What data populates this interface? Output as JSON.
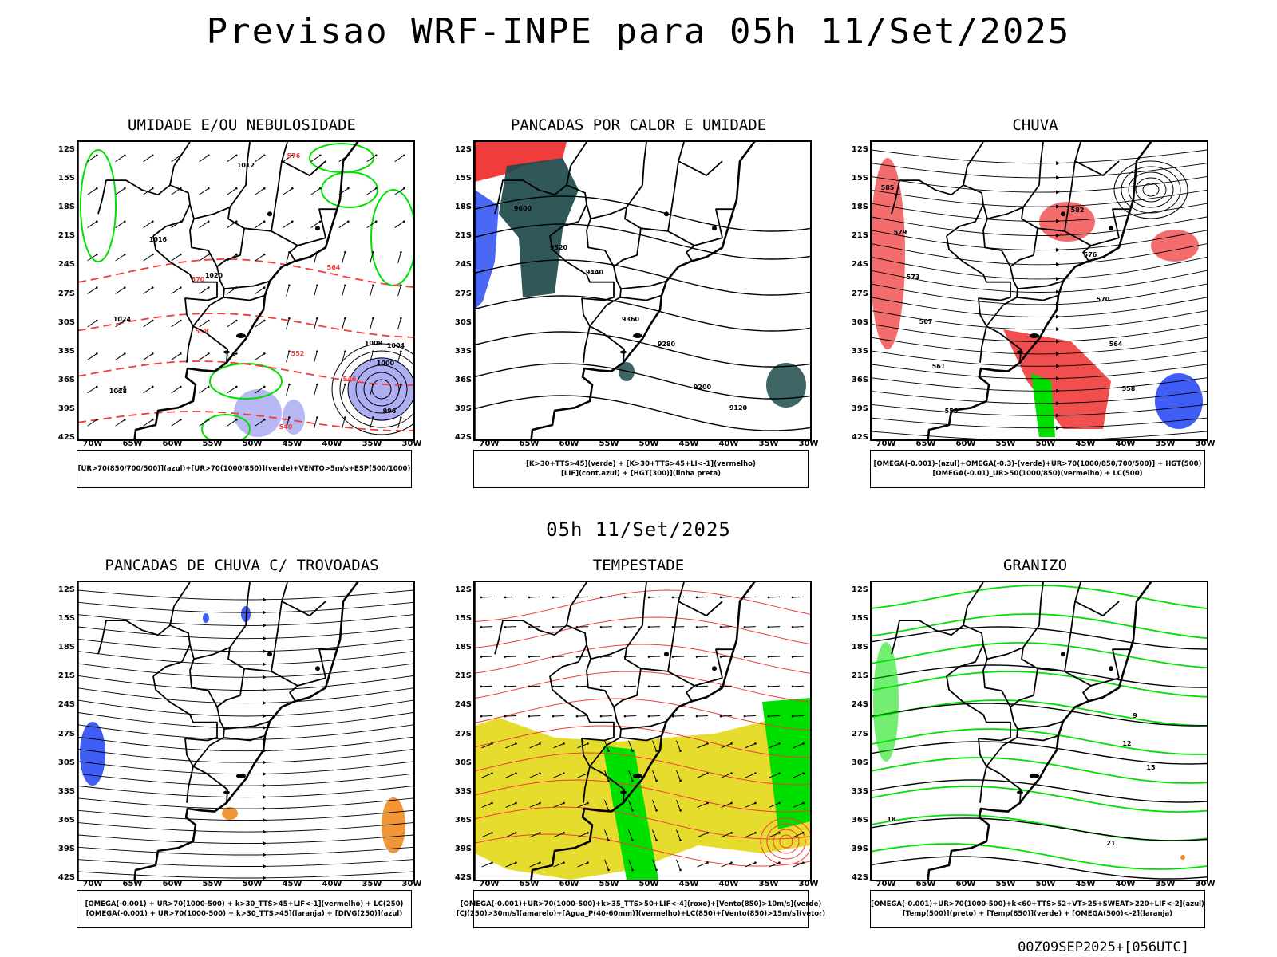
{
  "header": {
    "main_title": "Previsao WRF-INPE  para 05h 11/Set/2025",
    "mid_title": "05h 11/Set/2025",
    "run_stamp": "00Z09SEP2025+[056UTC]"
  },
  "axes": {
    "lat_labels": [
      "12S",
      "15S",
      "18S",
      "21S",
      "24S",
      "27S",
      "30S",
      "33S",
      "36S",
      "39S",
      "42S"
    ],
    "lon_labels": [
      "70W",
      "65W",
      "60W",
      "55W",
      "50W",
      "45W",
      "40W",
      "35W",
      "30W"
    ]
  },
  "panels": [
    {
      "id": "umidade",
      "title": "UMIDADE E/OU NEBULOSIDADE",
      "legend": [
        "[UR>70(850/700/500)](azul)+[UR>70(1000/850)](verde)+VENTO>5m/s+ESP(500/1000)"
      ],
      "contour_labels": [
        "1012",
        "1016",
        "1020",
        "1024",
        "1028",
        "1008",
        "1004",
        "1000",
        "996",
        "564",
        "570",
        "576",
        "558",
        "552",
        "546",
        "540"
      ]
    },
    {
      "id": "pancadas-calor",
      "title": "PANCADAS POR CALOR E UMIDADE",
      "legend": [
        "[K>30+TTS>45](verde) + [K>30+TTS>45+LI<-1](vermelho)",
        "[LIF](cont.azul) + [HGT(300)](linha preta)"
      ],
      "contour_labels": [
        "9600",
        "9520",
        "9440",
        "9360",
        "9280",
        "9200",
        "9120"
      ]
    },
    {
      "id": "chuva",
      "title": "CHUVA",
      "legend": [
        "[OMEGA(-0.001)-(azul)+OMEGA(-0.3)-(verde)+UR>70(1000/850/700/500)] + HGT(500)",
        "[OMEGA(-0.01)_UR>50(1000/850)(vermelho) + LC(500)"
      ],
      "contour_labels": [
        "585",
        "582",
        "579",
        "576",
        "573",
        "570",
        "567",
        "564",
        "561",
        "558",
        "555"
      ]
    },
    {
      "id": "trovoadas",
      "title": "PANCADAS DE CHUVA C/ TROVOADAS",
      "legend": [
        "[OMEGA(-0.001) + UR>70(1000-500) + k>30_TTS>45+LIF<-1](vermelho) + LC(250)",
        "[OMEGA(-0.001) + UR>70(1000-500) + k>30_TTS>45](laranja) + [DIVG(250)](azul)"
      ],
      "contour_labels": []
    },
    {
      "id": "tempestade",
      "title": "TEMPESTADE",
      "legend": [
        "[OMEGA(-0.001)+UR>70(1000-500)+k>35_TTS>50+LIF<-4](roxo)+[Vento(850)>10m/s](verde)",
        "[CJ(250)>30m/s](amarelo)+[Agua_P(40-60mm)](vermelho)+LC(850)+[Vento(850)>15m/s](vetor)"
      ],
      "contour_labels": []
    },
    {
      "id": "granizo",
      "title": "GRANIZO",
      "legend": [
        "[OMEGA(-0.001)+UR>70(1000-500)+k<60+TTS>52+VT>25+SWEAT>220+LIF<-2](azul)",
        "[Temp(500)](preto) + [Temp(850)](verde) + [OMEGA(500)<-2](laranja)"
      ],
      "contour_labels": [
        "9",
        "12",
        "15",
        "18",
        "21"
      ]
    }
  ],
  "colors": {
    "black": "#000000",
    "red": "#f03c3c",
    "green": "#00e000",
    "blue": "#2b4cf5",
    "lightblue": "#9a9af0",
    "teal": "#1f4a4a",
    "yellow": "#e6dc2e",
    "orange": "#f08a20"
  }
}
